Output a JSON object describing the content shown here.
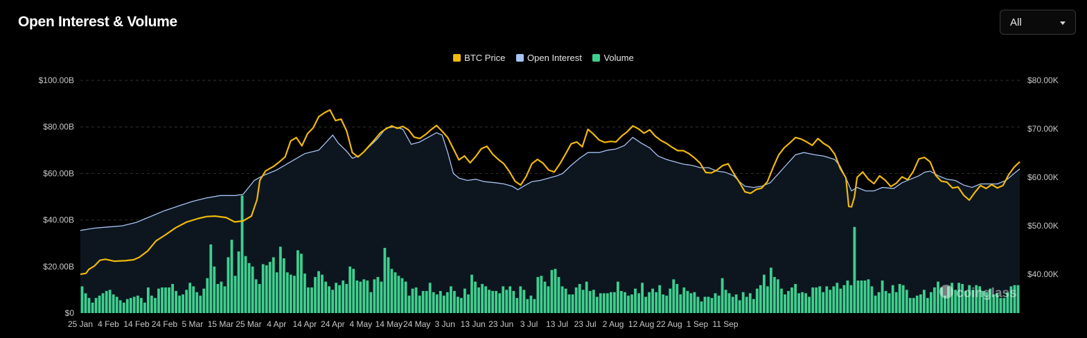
{
  "header": {
    "title": "Open Interest & Volume"
  },
  "range_select": {
    "value": "All"
  },
  "watermark": {
    "text": "coinglass"
  },
  "colors": {
    "btc": "#F0B90B",
    "oi": "#A8C4F4",
    "volume": "#3ECF8E",
    "grid": "#333333",
    "area": "#0D161F"
  },
  "chart_data": {
    "type": "bar+line",
    "title": "Open Interest & Volume",
    "legend": [
      "BTC Price",
      "Open Interest",
      "Volume"
    ],
    "legend_position": "top-center",
    "x_ticks": [
      "25 Jan",
      "4 Feb",
      "14 Feb",
      "24 Feb",
      "5 Mar",
      "15 Mar",
      "25 Mar",
      "4 Apr",
      "14 Apr",
      "24 Apr",
      "4 May",
      "14 May",
      "24 May",
      "3 Jun",
      "13 Jun",
      "23 Jun",
      "3 Jul",
      "13 Jul",
      "23 Jul",
      "2 Aug",
      "12 Aug",
      "22 Aug",
      "1 Sep",
      "11 Sep"
    ],
    "y_left_ticks": [
      "$0",
      "$20.00B",
      "$40.00B",
      "$60.00B",
      "$80.00B",
      "$100.00B"
    ],
    "y_left_range": [
      0,
      100
    ],
    "y_right_ticks": [
      "$40.00K",
      "$50.00K",
      "$60.00K",
      "$70.00K",
      "$80.00K"
    ],
    "y_right_range": [
      32,
      80
    ],
    "grid": true,
    "start_date": "2024-01-25",
    "btc_price_k": [
      [
        0,
        40.0
      ],
      [
        2,
        40.2
      ],
      [
        3,
        41.0
      ],
      [
        5,
        41.7
      ],
      [
        7,
        42.9
      ],
      [
        9,
        43.1
      ],
      [
        12,
        42.7
      ],
      [
        16,
        42.8
      ],
      [
        19,
        43.0
      ],
      [
        21,
        43.5
      ],
      [
        24,
        44.8
      ],
      [
        27,
        46.9
      ],
      [
        30,
        48.0
      ],
      [
        34,
        49.6
      ],
      [
        38,
        50.8
      ],
      [
        42,
        51.5
      ],
      [
        45,
        51.9
      ],
      [
        48,
        52.0
      ],
      [
        52,
        51.7
      ],
      [
        55,
        50.8
      ],
      [
        58,
        51.0
      ],
      [
        61,
        52.0
      ],
      [
        63,
        55.4
      ],
      [
        64,
        59.4
      ],
      [
        66,
        61.3
      ],
      [
        69,
        62.3
      ],
      [
        71,
        63.2
      ],
      [
        73,
        64.2
      ],
      [
        75,
        67.5
      ],
      [
        77,
        68.2
      ],
      [
        79,
        66.5
      ],
      [
        81,
        69.0
      ],
      [
        83,
        70.2
      ],
      [
        85,
        72.5
      ],
      [
        87,
        73.3
      ],
      [
        89,
        73.9
      ],
      [
        91,
        71.7
      ],
      [
        93,
        72.0
      ],
      [
        95,
        69.5
      ],
      [
        97,
        65.1
      ],
      [
        99,
        64.2
      ],
      [
        101,
        65.2
      ],
      [
        103,
        66.5
      ],
      [
        105,
        67.8
      ],
      [
        107,
        69.2
      ],
      [
        109,
        70.0
      ],
      [
        111,
        70.6
      ],
      [
        113,
        70.1
      ],
      [
        115,
        70.5
      ],
      [
        117,
        69.8
      ],
      [
        119,
        68.3
      ],
      [
        121,
        68.0
      ],
      [
        123,
        68.8
      ],
      [
        125,
        69.8
      ],
      [
        127,
        70.7
      ],
      [
        129,
        69.5
      ],
      [
        131,
        68.2
      ],
      [
        133,
        65.9
      ],
      [
        135,
        63.6
      ],
      [
        137,
        64.4
      ],
      [
        139,
        63.0
      ],
      [
        141,
        64.3
      ],
      [
        143,
        65.9
      ],
      [
        145,
        66.4
      ],
      [
        147,
        64.8
      ],
      [
        149,
        63.7
      ],
      [
        151,
        62.8
      ],
      [
        153,
        61.2
      ],
      [
        155,
        59.2
      ],
      [
        157,
        58.4
      ],
      [
        159,
        60.2
      ],
      [
        161,
        62.8
      ],
      [
        163,
        63.7
      ],
      [
        165,
        62.9
      ],
      [
        167,
        61.5
      ],
      [
        169,
        61.1
      ],
      [
        171,
        62.8
      ],
      [
        173,
        64.8
      ],
      [
        175,
        66.9
      ],
      [
        177,
        67.3
      ],
      [
        179,
        66.3
      ],
      [
        181,
        69.9
      ],
      [
        183,
        68.9
      ],
      [
        185,
        67.7
      ],
      [
        187,
        67.2
      ],
      [
        189,
        67.4
      ],
      [
        191,
        67.3
      ],
      [
        193,
        68.5
      ],
      [
        195,
        69.4
      ],
      [
        197,
        70.6
      ],
      [
        199,
        70.0
      ],
      [
        201,
        69.1
      ],
      [
        203,
        69.8
      ],
      [
        205,
        68.5
      ],
      [
        207,
        67.6
      ],
      [
        209,
        67.0
      ],
      [
        211,
        66.2
      ],
      [
        213,
        65.5
      ],
      [
        215,
        65.5
      ],
      [
        217,
        64.9
      ],
      [
        219,
        64.0
      ],
      [
        221,
        62.9
      ],
      [
        223,
        61.0
      ],
      [
        225,
        60.9
      ],
      [
        227,
        61.5
      ],
      [
        229,
        62.4
      ],
      [
        231,
        62.8
      ],
      [
        233,
        60.8
      ],
      [
        235,
        59.0
      ],
      [
        237,
        57.0
      ],
      [
        239,
        56.7
      ],
      [
        241,
        57.5
      ],
      [
        243,
        57.8
      ],
      [
        245,
        59.1
      ],
      [
        247,
        62.0
      ],
      [
        249,
        64.6
      ],
      [
        251,
        66.1
      ],
      [
        253,
        67.1
      ],
      [
        255,
        68.2
      ],
      [
        257,
        67.9
      ],
      [
        259,
        67.3
      ],
      [
        261,
        66.6
      ],
      [
        263,
        68.0
      ],
      [
        265,
        67.0
      ],
      [
        267,
        66.3
      ],
      [
        269,
        64.8
      ],
      [
        271,
        61.8
      ],
      [
        273,
        59.9
      ],
      [
        274,
        54.0
      ],
      [
        275,
        53.9
      ],
      [
        276,
        55.9
      ],
      [
        277,
        60.0
      ],
      [
        279,
        61.1
      ],
      [
        281,
        59.6
      ],
      [
        283,
        58.7
      ],
      [
        285,
        60.3
      ],
      [
        287,
        59.4
      ],
      [
        289,
        58.1
      ],
      [
        291,
        58.8
      ],
      [
        293,
        60.1
      ],
      [
        295,
        59.5
      ],
      [
        297,
        61.2
      ],
      [
        299,
        63.8
      ],
      [
        301,
        64.1
      ],
      [
        303,
        63.2
      ],
      [
        305,
        60.4
      ],
      [
        307,
        59.2
      ],
      [
        309,
        59.0
      ],
      [
        311,
        57.8
      ],
      [
        313,
        58.0
      ],
      [
        315,
        56.3
      ],
      [
        317,
        55.3
      ],
      [
        319,
        56.9
      ],
      [
        321,
        58.3
      ],
      [
        323,
        57.7
      ],
      [
        325,
        58.5
      ],
      [
        327,
        57.8
      ],
      [
        329,
        58.3
      ],
      [
        331,
        60.5
      ],
      [
        333,
        62.1
      ],
      [
        335,
        63.2
      ]
    ],
    "open_interest_b": [
      [
        0,
        35.5
      ],
      [
        5,
        36.5
      ],
      [
        10,
        37.0
      ],
      [
        15,
        37.5
      ],
      [
        20,
        39.0
      ],
      [
        25,
        41.5
      ],
      [
        30,
        44.0
      ],
      [
        35,
        46.0
      ],
      [
        40,
        48.0
      ],
      [
        45,
        49.5
      ],
      [
        50,
        50.5
      ],
      [
        55,
        50.5
      ],
      [
        58,
        51.0
      ],
      [
        60,
        54.0
      ],
      [
        62,
        57.0
      ],
      [
        65,
        59.0
      ],
      [
        70,
        61.5
      ],
      [
        75,
        65.0
      ],
      [
        80,
        68.5
      ],
      [
        85,
        70.0
      ],
      [
        90,
        76.5
      ],
      [
        92,
        73.0
      ],
      [
        95,
        69.5
      ],
      [
        97,
        66.5
      ],
      [
        100,
        68.0
      ],
      [
        103,
        71.5
      ],
      [
        106,
        75.0
      ],
      [
        109,
        79.5
      ],
      [
        112,
        80.0
      ],
      [
        115,
        79.0
      ],
      [
        118,
        72.5
      ],
      [
        121,
        73.5
      ],
      [
        124,
        75.5
      ],
      [
        127,
        77.5
      ],
      [
        129,
        76.5
      ],
      [
        131,
        69.0
      ],
      [
        133,
        60.0
      ],
      [
        135,
        58.0
      ],
      [
        138,
        57.0
      ],
      [
        141,
        57.5
      ],
      [
        144,
        56.5
      ],
      [
        148,
        56.0
      ],
      [
        151,
        55.5
      ],
      [
        154,
        54.5
      ],
      [
        156,
        53.0
      ],
      [
        158,
        54.5
      ],
      [
        161,
        56.5
      ],
      [
        164,
        57.0
      ],
      [
        167,
        58.0
      ],
      [
        170,
        59.0
      ],
      [
        172,
        60.0
      ],
      [
        175,
        63.5
      ],
      [
        178,
        66.5
      ],
      [
        181,
        69.0
      ],
      [
        185,
        69.0
      ],
      [
        188,
        70.0
      ],
      [
        191,
        70.5
      ],
      [
        194,
        72.0
      ],
      [
        197,
        75.5
      ],
      [
        200,
        73.0
      ],
      [
        203,
        71.0
      ],
      [
        206,
        67.5
      ],
      [
        209,
        66.0
      ],
      [
        212,
        65.0
      ],
      [
        215,
        64.0
      ],
      [
        218,
        63.5
      ],
      [
        221,
        62.5
      ],
      [
        224,
        62.5
      ],
      [
        227,
        61.0
      ],
      [
        230,
        60.5
      ],
      [
        233,
        59.0
      ],
      [
        235,
        56.5
      ],
      [
        237,
        54.5
      ],
      [
        240,
        54.0
      ],
      [
        243,
        54.5
      ],
      [
        246,
        56.0
      ],
      [
        249,
        60.0
      ],
      [
        252,
        64.0
      ],
      [
        255,
        68.0
      ],
      [
        258,
        69.0
      ],
      [
        262,
        68.0
      ],
      [
        265,
        67.5
      ],
      [
        269,
        66.0
      ],
      [
        271,
        63.0
      ],
      [
        273,
        58.0
      ],
      [
        275,
        52.5
      ],
      [
        277,
        54.0
      ],
      [
        280,
        52.5
      ],
      [
        283,
        52.5
      ],
      [
        286,
        54.0
      ],
      [
        290,
        53.5
      ],
      [
        293,
        56.0
      ],
      [
        296,
        57.5
      ],
      [
        299,
        59.0
      ],
      [
        301,
        60.5
      ],
      [
        303,
        61.0
      ],
      [
        306,
        59.0
      ],
      [
        309,
        57.5
      ],
      [
        312,
        57.0
      ],
      [
        315,
        55.0
      ],
      [
        318,
        54.0
      ],
      [
        321,
        55.5
      ],
      [
        324,
        55.5
      ],
      [
        327,
        55.5
      ],
      [
        330,
        57.0
      ],
      [
        333,
        60.0
      ],
      [
        335,
        62.0
      ]
    ],
    "volume_b": [
      11.5,
      8.5,
      6.5,
      4.5,
      6.5,
      7.5,
      8.5,
      9.5,
      10.0,
      8.0,
      7.0,
      5.5,
      4.5,
      6.0,
      6.5,
      7.0,
      7.5,
      6.5,
      4.5,
      11.0,
      7.5,
      6.5,
      10.5,
      11.0,
      11.0,
      11.0,
      12.5,
      9.5,
      7.5,
      8.0,
      10.0,
      13.0,
      11.5,
      9.0,
      7.5,
      10.5,
      15.0,
      29.5,
      20.0,
      12.5,
      13.5,
      11.5,
      24.0,
      31.5,
      16.0,
      26.5,
      50.5,
      24.5,
      21.5,
      20.0,
      14.5,
      12.5,
      21.0,
      20.5,
      22.0,
      24.0,
      17.5,
      28.5,
      23.5,
      17.5,
      16.5,
      16.0,
      27.0,
      25.5,
      17.0,
      11.0,
      11.0,
      15.5,
      18.0,
      16.5,
      13.5,
      11.5,
      10.0,
      13.0,
      12.0,
      14.0,
      12.5,
      20.0,
      19.0,
      14.0,
      13.5,
      14.5,
      14.0,
      9.0,
      14.5,
      15.5,
      13.5,
      28.0,
      24.0,
      19.0,
      17.5,
      16.0,
      15.0,
      13.5,
      7.5,
      10.5,
      11.0,
      7.5,
      9.5,
      9.5,
      13.0,
      9.0,
      8.0,
      9.5,
      7.5,
      9.0,
      11.5,
      9.5,
      7.0,
      6.5,
      10.5,
      8.0,
      16.5,
      13.5,
      11.0,
      12.5,
      11.5,
      10.0,
      9.5,
      9.5,
      8.5,
      11.5,
      10.0,
      11.5,
      9.5,
      6.5,
      11.5,
      10.0,
      6.0,
      7.5,
      6.0,
      15.5,
      16.0,
      13.5,
      11.5,
      18.5,
      19.0,
      15.5,
      11.5,
      10.5,
      8.0,
      8.0,
      11.0,
      12.5,
      10.0,
      13.5,
      9.5,
      10.0,
      7.0,
      8.5,
      8.5,
      8.5,
      9.0,
      9.0,
      13.5,
      9.5,
      9.0,
      7.5,
      8.0,
      10.5,
      8.5,
      13.0,
      7.0,
      9.0,
      10.5,
      9.0,
      12.0,
      8.0,
      7.5,
      10.5,
      14.5,
      12.5,
      8.0,
      11.0,
      9.5,
      8.5,
      9.0,
      7.0,
      5.0,
      7.0,
      7.0,
      6.5,
      8.5,
      7.5,
      15.0,
      10.0,
      8.5,
      7.0,
      8.0,
      5.5,
      9.0,
      7.0,
      8.5,
      6.0,
      10.5,
      12.0,
      16.5,
      11.5,
      19.5,
      15.5,
      14.5,
      10.5,
      8.0,
      9.5,
      11.0,
      12.5,
      8.5,
      9.0,
      8.5,
      7.0,
      11.0,
      11.0,
      11.5,
      9.0,
      11.5,
      10.0,
      11.5,
      13.0,
      10.5,
      12.0,
      14.0,
      12.0,
      37.0,
      14.0,
      14.0,
      14.0,
      14.5,
      11.5,
      7.5,
      9.0,
      14.0,
      9.5,
      8.5,
      12.0,
      9.0,
      12.5,
      12.0,
      10.0,
      6.5,
      6.5,
      7.5,
      8.0,
      10.0,
      6.5,
      9.0,
      11.0,
      13.5,
      11.0,
      7.5,
      11.5,
      13.0,
      10.0,
      13.0,
      12.5,
      9.5,
      12.0,
      10.0,
      12.0,
      11.5,
      9.5,
      9.0,
      10.5,
      8.0,
      8.5,
      6.5,
      6.5,
      9.0,
      11.5,
      12.0,
      12.0
    ]
  }
}
